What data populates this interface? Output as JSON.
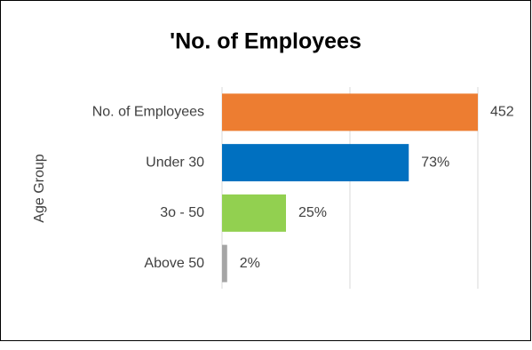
{
  "chart_data": {
    "type": "bar",
    "orientation": "horizontal",
    "title": "'No. of Employees",
    "y_label": "Age Group",
    "categories": [
      "No. of Employees",
      "Under 30",
      "3o - 50",
      "Above 50"
    ],
    "values": [
      100,
      73,
      25,
      2
    ],
    "value_labels": [
      null,
      "73%",
      "25%",
      "2%"
    ],
    "employees": 452,
    "colors": [
      "#ED7D31",
      "#0070C0",
      "#92D050",
      "#A5A5A5"
    ],
    "xlim": [
      0,
      100
    ],
    "xticks": [
      0,
      50,
      100
    ],
    "grid": true
  }
}
